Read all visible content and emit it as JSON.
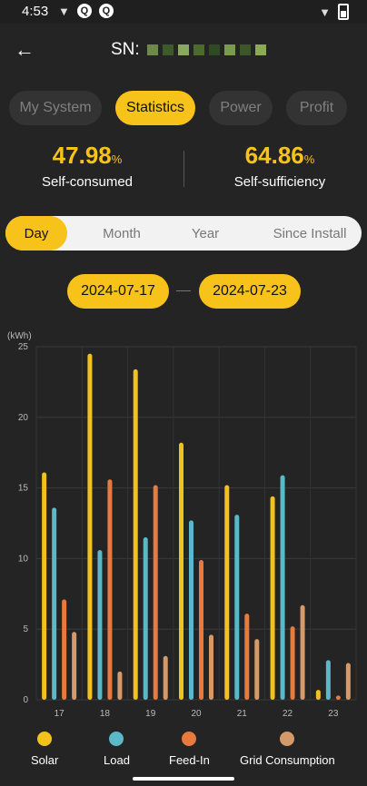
{
  "status": {
    "time": "4:53"
  },
  "header": {
    "sn_label": "SN:"
  },
  "tabs": [
    {
      "label": "My System",
      "active": false
    },
    {
      "label": "Statistics",
      "active": true
    },
    {
      "label": "Power",
      "active": false
    },
    {
      "label": "Profit",
      "active": false
    }
  ],
  "metrics": {
    "self_consumed": {
      "value": "47.98",
      "unit": "%",
      "label": "Self-consumed"
    },
    "self_sufficiency": {
      "value": "64.86",
      "unit": "%",
      "label": "Self-sufficiency"
    }
  },
  "period_tabs": [
    "Day",
    "Month",
    "Year",
    "Since Install"
  ],
  "dates": {
    "start": "2024-07-17",
    "end": "2024-07-23"
  },
  "colors": {
    "accent": "#f7c31a",
    "solar": "#f2c21c",
    "load": "#5bb8c8",
    "feed_in": "#e87a3e",
    "grid": "#d49a6a"
  },
  "chart_data": {
    "type": "bar",
    "unit_label": "(kWh)",
    "categories": [
      "17",
      "18",
      "19",
      "20",
      "21",
      "22",
      "23"
    ],
    "y_ticks": [
      0,
      5,
      10,
      15,
      20,
      25
    ],
    "ylim": [
      0,
      25
    ],
    "series": [
      {
        "name": "Solar",
        "values": [
          16.1,
          24.5,
          23.4,
          18.2,
          15.2,
          14.4,
          0.7
        ]
      },
      {
        "name": "Load",
        "values": [
          13.6,
          10.6,
          11.5,
          12.7,
          13.1,
          15.9,
          2.8
        ]
      },
      {
        "name": "Feed-In",
        "values": [
          7.1,
          15.6,
          15.2,
          9.9,
          6.1,
          5.2,
          0.3
        ]
      },
      {
        "name": "Grid Consumption",
        "values": [
          4.8,
          2.0,
          3.1,
          4.6,
          4.3,
          6.7,
          2.6
        ]
      }
    ],
    "legend_position": "bottom"
  }
}
